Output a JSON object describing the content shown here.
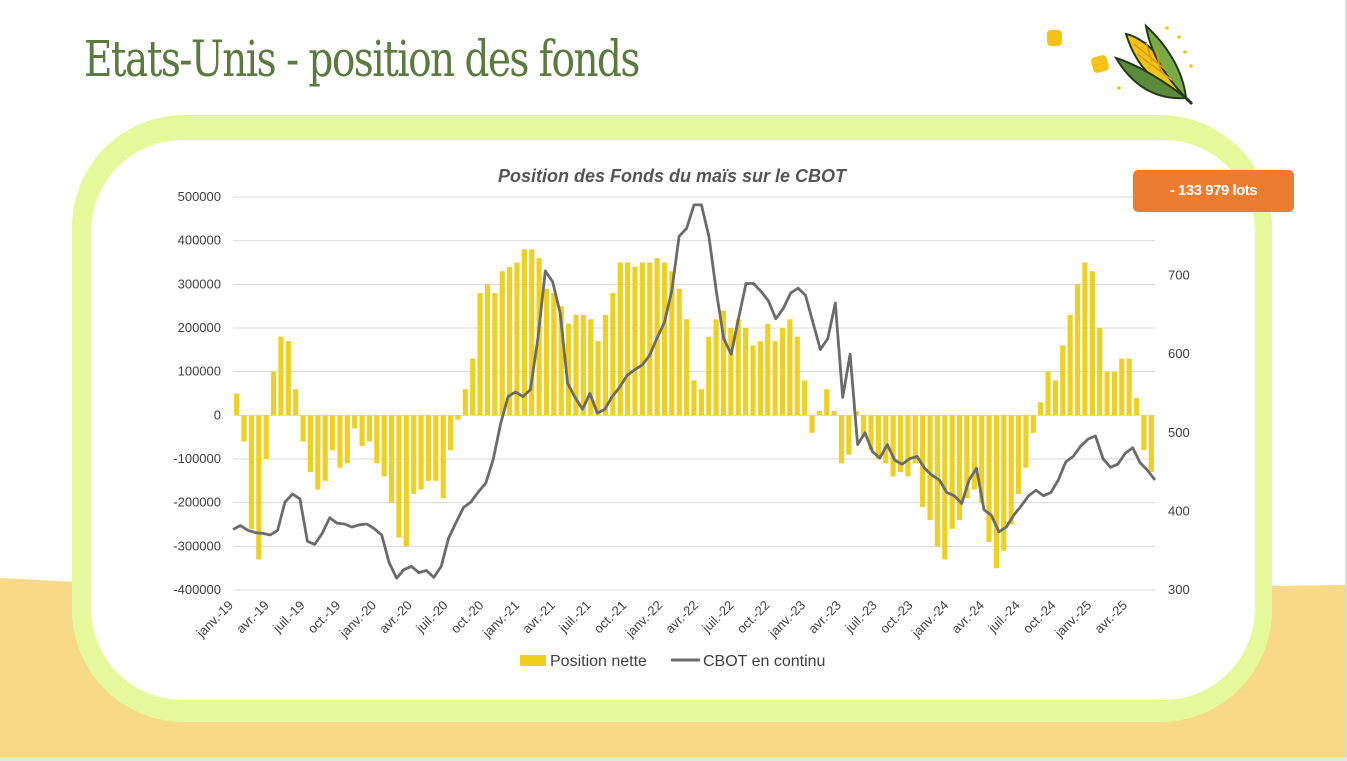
{
  "slide": {
    "title": "Etats-Unis - position des fonds",
    "badge": "- 133 979 lots",
    "colors": {
      "title": "#5a7a3e",
      "frame": "#e5f99a",
      "band": "#f8d987",
      "badge": "#ec7c30",
      "bars": "#efd020",
      "line": "#6b6b6b"
    },
    "icons": [
      "corn-icon",
      "corn-kernel-icon"
    ]
  },
  "chart_data": {
    "type": "bar",
    "title": "Position des Fonds du maïs sur le CBOT",
    "x_tick_labels": [
      "janv.-19",
      "avr.-19",
      "juil.-19",
      "oct.-19",
      "janv.-20",
      "avr.-20",
      "juil.-20",
      "oct.-20",
      "janv.-21",
      "avr.-21",
      "juil.-21",
      "oct.-21",
      "janv.-22",
      "avr.-22",
      "juil.-22",
      "oct.-22",
      "janv.-23",
      "avr.-23",
      "juil.-23",
      "oct.-23",
      "janv.-24",
      "avr.-24",
      "juil.-24",
      "oct.-24",
      "janv.-25",
      "avr.-25"
    ],
    "y_left": {
      "min": -400000,
      "max": 500000,
      "step": 100000,
      "ticks": [
        "500000",
        "400000",
        "300000",
        "200000",
        "100000",
        "0",
        "-100000",
        "-200000",
        "-300000",
        "-400000"
      ]
    },
    "y_right": {
      "min": 300,
      "max": 800,
      "step": 100,
      "ticks": [
        "800",
        "700",
        "600",
        "500",
        "400",
        "300"
      ]
    },
    "grid": true,
    "legend_position": "bottom",
    "series": [
      {
        "name": "Position nette",
        "type": "bar",
        "axis": "left",
        "color": "#efd020",
        "values": [
          50000,
          -60000,
          -260000,
          -330000,
          -100000,
          100000,
          180000,
          170000,
          60000,
          -60000,
          -130000,
          -170000,
          -150000,
          -80000,
          -120000,
          -110000,
          -30000,
          -70000,
          -60000,
          -110000,
          -140000,
          -200000,
          -280000,
          -300000,
          -180000,
          -170000,
          -150000,
          -150000,
          -190000,
          -80000,
          -10000,
          60000,
          130000,
          280000,
          300000,
          280000,
          330000,
          340000,
          350000,
          380000,
          380000,
          360000,
          290000,
          280000,
          250000,
          210000,
          230000,
          230000,
          220000,
          170000,
          230000,
          280000,
          350000,
          350000,
          340000,
          350000,
          350000,
          360000,
          350000,
          330000,
          290000,
          220000,
          80000,
          60000,
          180000,
          220000,
          240000,
          200000,
          220000,
          200000,
          160000,
          170000,
          210000,
          170000,
          200000,
          220000,
          180000,
          80000,
          -40000,
          10000,
          60000,
          10000,
          -110000,
          -90000,
          10000,
          -50000,
          -80000,
          -100000,
          -110000,
          -140000,
          -130000,
          -140000,
          -110000,
          -210000,
          -240000,
          -300000,
          -330000,
          -260000,
          -240000,
          -190000,
          -170000,
          -200000,
          -290000,
          -350000,
          -310000,
          -250000,
          -180000,
          -120000,
          -40000,
          30000,
          100000,
          80000,
          160000,
          230000,
          300000,
          350000,
          330000,
          200000,
          100000,
          100000,
          130000,
          130000,
          40000,
          -80000,
          -130000
        ]
      },
      {
        "name": "CBOT en continu",
        "type": "line",
        "axis": "right",
        "color": "#6b6b6b",
        "values": [
          377,
          382,
          376,
          373,
          372,
          370,
          376,
          412,
          422,
          416,
          362,
          358,
          372,
          392,
          385,
          384,
          380,
          383,
          384,
          378,
          370,
          335,
          315,
          326,
          330,
          322,
          325,
          316,
          330,
          366,
          386,
          405,
          412,
          425,
          436,
          466,
          512,
          546,
          552,
          546,
          555,
          620,
          706,
          692,
          652,
          563,
          545,
          530,
          550,
          525,
          530,
          546,
          558,
          573,
          580,
          586,
          598,
          620,
          640,
          680,
          750,
          760,
          790,
          790,
          750,
          680,
          620,
          600,
          646,
          690,
          690,
          680,
          668,
          645,
          658,
          678,
          684,
          675,
          640,
          606,
          620,
          665,
          545,
          600,
          485,
          500,
          476,
          468,
          485,
          465,
          460,
          467,
          470,
          455,
          446,
          440,
          424,
          420,
          410,
          440,
          455,
          402,
          395,
          374,
          380,
          395,
          407,
          420,
          427,
          420,
          424,
          440,
          463,
          470,
          483,
          492,
          496,
          467,
          456,
          460,
          474,
          481,
          462,
          452,
          440
        ]
      }
    ]
  }
}
